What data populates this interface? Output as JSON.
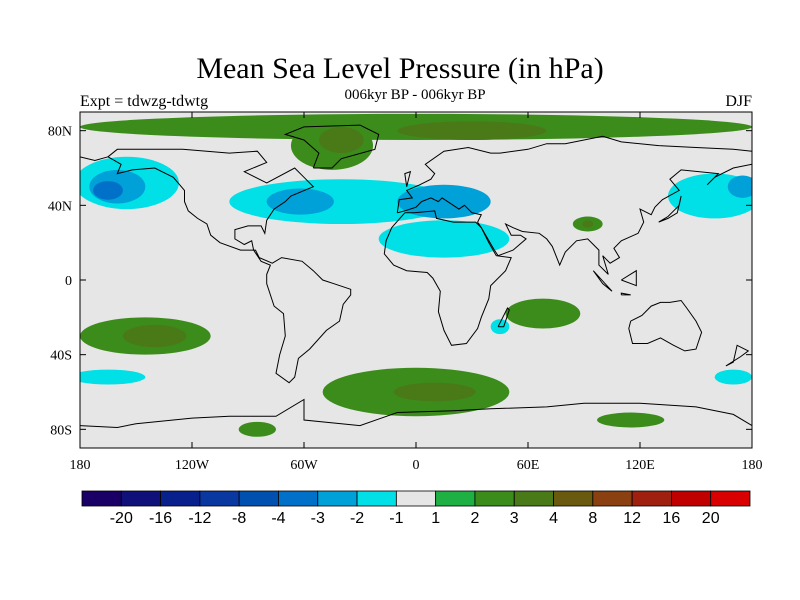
{
  "title": "Mean Sea Level Pressure (in hPa)",
  "subtitle": "006kyr BP - 006kyr BP",
  "experiment": "Expt = tdwzg-tdwtg",
  "season": "DJF",
  "colors": {
    "land_mask_bg": "#e6e6e6",
    "neg1": "#00e0e6",
    "neg2": "#00a8d8",
    "neg3": "#0078c8",
    "pos1": "#1fb043",
    "pos2": "#3c8c1c",
    "pos3": "#5a6a10",
    "coast": "#000000"
  },
  "chart_data": {
    "type": "heatmap",
    "x_axis": {
      "range": [
        -180,
        180
      ],
      "ticks": [
        -180,
        -120,
        -60,
        0,
        60,
        120,
        180
      ],
      "tick_labels": [
        "180",
        "120W",
        "60W",
        "0",
        "60E",
        "120E",
        "180"
      ]
    },
    "y_axis": {
      "range": [
        -90,
        90
      ],
      "ticks": [
        80,
        40,
        0,
        -40,
        -80
      ],
      "tick_labels": [
        "80N",
        "40N",
        "0",
        "40S",
        "80S"
      ]
    },
    "colorbar": {
      "levels": [
        "-20",
        "-16",
        "-12",
        "-8",
        "-4",
        "-3",
        "-2",
        "-1",
        "1",
        "2",
        "3",
        "4",
        "8",
        "12",
        "16",
        "20"
      ],
      "colors": [
        "#1a0066",
        "#10107a",
        "#08208c",
        "#0838a0",
        "#0050b0",
        "#0070c8",
        "#00a0d8",
        "#00e0e6",
        "#e6e6e6",
        "#1fb043",
        "#3c8c1c",
        "#4a7a18",
        "#6a5a10",
        "#8a4010",
        "#a02010",
        "#c00000",
        "#d80000"
      ]
    },
    "anomaly_regions": [
      {
        "lon": 0,
        "lat": 82,
        "rlon": 180,
        "rlat": 7,
        "level": "2"
      },
      {
        "lon": 30,
        "lat": 80,
        "rlon": 40,
        "rlat": 5,
        "level": "3"
      },
      {
        "lon": -45,
        "lat": 72,
        "rlon": 22,
        "rlat": 13,
        "level": "2"
      },
      {
        "lon": -40,
        "lat": 75,
        "rlon": 12,
        "rlat": 7,
        "level": "3"
      },
      {
        "lon": -155,
        "lat": 52,
        "rlon": 28,
        "rlat": 14,
        "level": "-1"
      },
      {
        "lon": -160,
        "lat": 50,
        "rlon": 15,
        "rlat": 9,
        "level": "-2"
      },
      {
        "lon": -165,
        "lat": 48,
        "rlon": 8,
        "rlat": 5,
        "level": "-3"
      },
      {
        "lon": -40,
        "lat": 42,
        "rlon": 60,
        "rlat": 12,
        "level": "-1"
      },
      {
        "lon": -62,
        "lat": 42,
        "rlon": 18,
        "rlat": 7,
        "level": "-2"
      },
      {
        "lon": 15,
        "lat": 42,
        "rlon": 25,
        "rlat": 9,
        "level": "-2"
      },
      {
        "lon": 15,
        "lat": 22,
        "rlon": 35,
        "rlat": 10,
        "level": "-1"
      },
      {
        "lon": 160,
        "lat": 45,
        "rlon": 25,
        "rlat": 12,
        "level": "-1"
      },
      {
        "lon": 175,
        "lat": 50,
        "rlon": 8,
        "rlat": 6,
        "level": "-2"
      },
      {
        "lon": 92,
        "lat": 30,
        "rlon": 8,
        "rlat": 4,
        "level": "2"
      },
      {
        "lon": 92,
        "lat": 30,
        "rlon": 3,
        "rlat": 2,
        "level": "3"
      },
      {
        "lon": -145,
        "lat": -30,
        "rlon": 35,
        "rlat": 10,
        "level": "2"
      },
      {
        "lon": -140,
        "lat": -30,
        "rlon": 17,
        "rlat": 6,
        "level": "3"
      },
      {
        "lon": 68,
        "lat": -18,
        "rlon": 20,
        "rlat": 8,
        "level": "2"
      },
      {
        "lon": 0,
        "lat": -60,
        "rlon": 50,
        "rlat": 13,
        "level": "2"
      },
      {
        "lon": 10,
        "lat": -60,
        "rlon": 22,
        "rlat": 5,
        "level": "3"
      },
      {
        "lon": -165,
        "lat": -52,
        "rlon": 20,
        "rlat": 4,
        "level": "-1"
      },
      {
        "lon": 170,
        "lat": -52,
        "rlon": 10,
        "rlat": 4,
        "level": "-1"
      },
      {
        "lon": 45,
        "lat": -25,
        "rlon": 5,
        "rlat": 4,
        "level": "-1"
      },
      {
        "lon": -85,
        "lat": -80,
        "rlon": 10,
        "rlat": 4,
        "level": "2"
      },
      {
        "lon": 115,
        "lat": -75,
        "rlon": 18,
        "rlat": 4,
        "level": "2"
      }
    ]
  }
}
